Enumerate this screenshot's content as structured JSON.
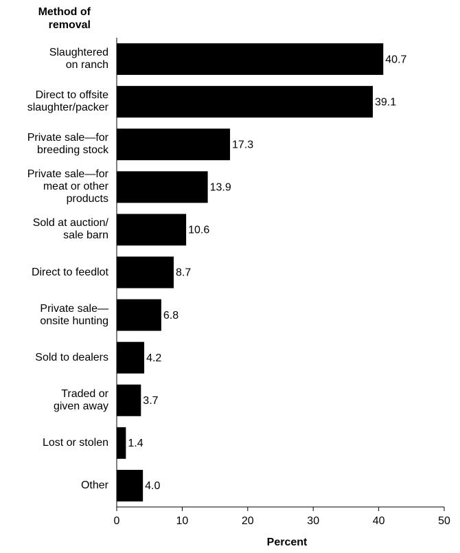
{
  "chart_data": {
    "type": "barh",
    "y_axis_title": "Method of\nremoval",
    "x_axis_title": "Percent",
    "categories": [
      "Slaughtered\non ranch",
      "Direct to offsite\nslaughter/packer",
      "Private sale—for\nbreeding stock",
      "Private sale—for\nmeat or other\nproducts",
      "Sold at auction/\nsale barn",
      "Direct to feedlot",
      "Private sale—\nonsite hunting",
      "Sold to dealers",
      "Traded or\ngiven away",
      "Lost or stolen",
      "Other"
    ],
    "values": [
      40.7,
      39.1,
      17.3,
      13.9,
      10.6,
      8.7,
      6.8,
      4.2,
      3.7,
      1.4,
      4.0
    ],
    "value_labels": [
      "40.7",
      "39.1",
      "17.3",
      "13.9",
      "10.6",
      "8.7",
      "6.8",
      "4.2",
      "3.7",
      "1.4",
      "4.0"
    ],
    "color": "#000000",
    "xlim": [
      0,
      50
    ],
    "xticks": [
      0,
      10,
      20,
      30,
      40,
      50
    ],
    "grid": false
  }
}
